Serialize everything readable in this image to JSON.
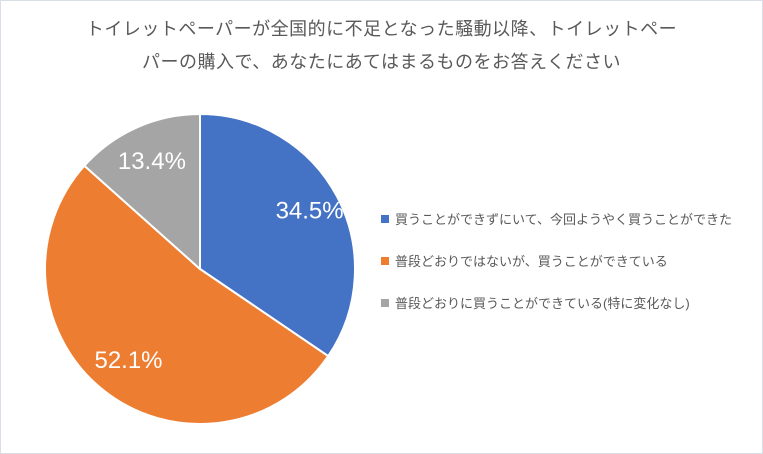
{
  "window": {
    "background": "#ffffff",
    "border_color": "#d9dfe8"
  },
  "chart_data": {
    "type": "pie",
    "title": "トイレットペーパーが全国的に不足となった騒動以降、トイレットペーパーの購入で、あなたにあてはまるものをお答えください",
    "title_lines": [
      "トイレットペーパーが全国的に不足となった騒動以降、トイレットペー",
      "パーの購入で、あなたにあてはまるものをお答えください"
    ],
    "title_color": "#595959",
    "categories": [
      "買うことができずにいて、今回ようやく買うことができた",
      "普段どおりではないが、買うことができている",
      "普段どおりに買うことができている(特に変化なし)"
    ],
    "values": [
      34.5,
      52.1,
      13.4
    ],
    "data_labels": [
      "34.5%",
      "52.1%",
      "13.4%"
    ],
    "colors": [
      "#4472C4",
      "#ED7D31",
      "#A5A5A5"
    ],
    "slice_border_color": "#ffffff",
    "label_color": "#ffffff",
    "start_angle_deg": 0,
    "direction": "clockwise",
    "legend_position": "right",
    "label_radius_fracs": [
      0.8,
      0.75,
      0.76
    ]
  },
  "legend": {
    "text_color": "#595959",
    "items": [
      {
        "label": "買うことができずにいて、今回ようやく買うことができた",
        "color": "#4472C4"
      },
      {
        "label": "普段どおりではないが、買うことができている",
        "color": "#ED7D31"
      },
      {
        "label": "普段どおりに買うことができている(特に変化なし)",
        "color": "#A5A5A5"
      }
    ]
  }
}
